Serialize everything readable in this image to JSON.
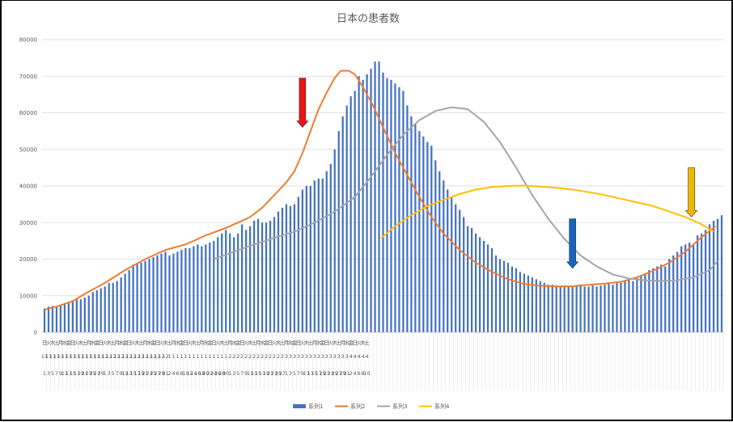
{
  "chart_data": {
    "type": "line",
    "title": "日本の患者数",
    "xlabel": "",
    "ylabel": "",
    "ylim": [
      0,
      80000
    ],
    "yticks": [
      "0",
      "10000",
      "20000",
      "30000",
      "40000",
      "50000",
      "60000",
      "70000",
      "80000"
    ],
    "grid": true,
    "legend_position": "bottom",
    "weekdays": [
      "日",
      "月",
      "火",
      "水",
      "木",
      "金",
      "土"
    ],
    "first_weekday_index": 0,
    "date_labels": [
      "11/1",
      "11/3",
      "11/5",
      "11/7",
      "11/9",
      "11/11",
      "11/13",
      "11/15",
      "11/17",
      "11/19",
      "11/21",
      "11/23",
      "11/25",
      "11/27",
      "11/29",
      "12/1",
      "12/3",
      "12/5",
      "12/7",
      "12/9",
      "12/11",
      "12/13",
      "12/15",
      "12/17",
      "12/19",
      "12/21",
      "12/23",
      "12/25",
      "12/27",
      "12/29",
      "12/31",
      "1/2",
      "1/4",
      "1/6",
      "1/8",
      "1/10",
      "1/12",
      "1/14",
      "1/16",
      "1/18",
      "1/20",
      "1/22",
      "1/24",
      "1/26",
      "1/28",
      "1/30",
      "2/1",
      "2/3",
      "2/5",
      "2/7",
      "2/9",
      "2/11",
      "2/13",
      "2/15",
      "2/17",
      "2/19",
      "2/21",
      "2/23",
      "2/25",
      "2/27",
      "3/1",
      "3/3",
      "3/5",
      "3/7",
      "3/9",
      "3/11",
      "3/13",
      "3/15",
      "3/17",
      "3/19",
      "3/21",
      "3/23",
      "3/25",
      "3/27",
      "3/29",
      "3/31",
      "4/2",
      "4/4",
      "4/6",
      "4/8",
      "4/10"
    ],
    "series": [
      {
        "name": "系列1",
        "kind": "bar",
        "color": "#4472C4",
        "values": [
          6500,
          7000,
          7200,
          7000,
          7500,
          7800,
          8000,
          8500,
          9000,
          9000,
          9500,
          10000,
          11000,
          11500,
          12000,
          12500,
          13500,
          13500,
          14000,
          15000,
          16000,
          17000,
          18500,
          19000,
          19000,
          19500,
          20000,
          20500,
          21000,
          21500,
          22000,
          21000,
          21500,
          22000,
          22500,
          23000,
          23000,
          23500,
          24000,
          23500,
          24000,
          24500,
          25000,
          26000,
          27000,
          28000,
          27000,
          26000,
          27000,
          29500,
          28000,
          29000,
          30500,
          31000,
          30000,
          30000,
          30500,
          31500,
          33000,
          34000,
          35000,
          34500,
          35000,
          37000,
          39000,
          40000,
          40000,
          41500,
          42000,
          42000,
          44000,
          46000,
          50000,
          55000,
          59000,
          62000,
          64500,
          66000,
          70000,
          69000,
          70500,
          72000,
          74000,
          74000,
          71000,
          69500,
          69000,
          68000,
          67000,
          66000,
          62000,
          59000,
          57000,
          55000,
          53500,
          52000,
          51000,
          47000,
          44000,
          41500,
          39000,
          37000,
          35000,
          33500,
          31500,
          29000,
          28500,
          27000,
          26000,
          25000,
          24000,
          23000,
          21000,
          20000,
          19500,
          19000,
          18000,
          17500,
          16500,
          16000,
          15500,
          15000,
          14500,
          14000,
          13500,
          13000,
          13000,
          12800,
          12500,
          12500,
          12500,
          12500,
          12800,
          13000,
          12500,
          12500,
          12800,
          12500,
          12800,
          13000,
          13500,
          13000,
          13500,
          13500,
          14000,
          14500,
          14000,
          15000,
          15500,
          16000,
          17000,
          17500,
          18000,
          18500,
          18000,
          20000,
          21000,
          22000,
          23500,
          24000,
          24500,
          24000,
          26500,
          27000,
          28000,
          29500,
          30500,
          31000,
          32000
        ]
      },
      {
        "name": "系列2",
        "kind": "line",
        "color": "#ED7D31",
        "points": [
          [
            0,
            6200
          ],
          [
            6,
            7000
          ],
          [
            14,
            8500
          ],
          [
            20,
            10500
          ],
          [
            30,
            13500
          ],
          [
            40,
            17000
          ],
          [
            50,
            20000
          ],
          [
            60,
            22500
          ],
          [
            70,
            24000
          ],
          [
            80,
            26500
          ],
          [
            90,
            28500
          ],
          [
            96,
            30000
          ],
          [
            102,
            31500
          ],
          [
            108,
            34000
          ],
          [
            114,
            37500
          ],
          [
            120,
            41000
          ],
          [
            124,
            44000
          ],
          [
            128,
            49000
          ],
          [
            132,
            55000
          ],
          [
            136,
            61000
          ],
          [
            140,
            65500
          ],
          [
            144,
            69500
          ],
          [
            147,
            71500
          ],
          [
            151,
            71500
          ],
          [
            154,
            70500
          ],
          [
            158,
            67000
          ],
          [
            163,
            62000
          ],
          [
            168,
            56000
          ],
          [
            174,
            49000
          ],
          [
            180,
            43000
          ],
          [
            186,
            37000
          ],
          [
            192,
            31500
          ],
          [
            198,
            27000
          ],
          [
            206,
            22500
          ],
          [
            214,
            19000
          ],
          [
            222,
            16500
          ],
          [
            230,
            14500
          ],
          [
            238,
            13200
          ],
          [
            246,
            12700
          ],
          [
            254,
            12500
          ],
          [
            262,
            12600
          ],
          [
            270,
            13000
          ],
          [
            278,
            13300
          ],
          [
            286,
            13800
          ],
          [
            294,
            15000
          ],
          [
            302,
            16800
          ],
          [
            310,
            19000
          ],
          [
            318,
            22000
          ],
          [
            326,
            26000
          ],
          [
            333,
            29000
          ]
        ]
      },
      {
        "name": "系列3",
        "kind": "line",
        "color": "#A5A5A5",
        "points": [
          [
            84,
            20000
          ],
          [
            94,
            22000
          ],
          [
            104,
            24000
          ],
          [
            114,
            25800
          ],
          [
            124,
            27500
          ],
          [
            134,
            30000
          ],
          [
            144,
            33000
          ],
          [
            154,
            37000
          ],
          [
            162,
            42500
          ],
          [
            170,
            48500
          ],
          [
            178,
            54000
          ],
          [
            186,
            58000
          ],
          [
            194,
            60500
          ],
          [
            202,
            61500
          ],
          [
            210,
            61000
          ],
          [
            218,
            57500
          ],
          [
            226,
            52000
          ],
          [
            234,
            45000
          ],
          [
            242,
            37500
          ],
          [
            250,
            31000
          ],
          [
            258,
            25500
          ],
          [
            266,
            21000
          ],
          [
            274,
            18000
          ],
          [
            282,
            15800
          ],
          [
            290,
            14700
          ],
          [
            298,
            14200
          ],
          [
            306,
            14000
          ],
          [
            314,
            14200
          ],
          [
            322,
            15000
          ],
          [
            330,
            17000
          ],
          [
            334,
            19500
          ]
        ]
      },
      {
        "name": "系列4",
        "kind": "line",
        "color": "#FFC000",
        "points": [
          [
            167,
            25700
          ],
          [
            174,
            29000
          ],
          [
            182,
            32000
          ],
          [
            190,
            34500
          ],
          [
            198,
            36200
          ],
          [
            206,
            37800
          ],
          [
            214,
            39000
          ],
          [
            222,
            39700
          ],
          [
            230,
            40000
          ],
          [
            238,
            40100
          ],
          [
            246,
            39800
          ],
          [
            254,
            39500
          ],
          [
            262,
            39000
          ],
          [
            270,
            38300
          ],
          [
            278,
            37500
          ],
          [
            286,
            36500
          ],
          [
            294,
            35500
          ],
          [
            302,
            34500
          ],
          [
            310,
            33000
          ],
          [
            318,
            31500
          ],
          [
            326,
            29500
          ],
          [
            332,
            27500
          ]
        ]
      }
    ],
    "annotations": [
      {
        "type": "arrow-down",
        "color": "#E81416",
        "day": 128,
        "from": 69500,
        "to": 56000
      },
      {
        "type": "arrow-down",
        "color": "#1565C0",
        "day": 262,
        "from": 31000,
        "to": 17500
      },
      {
        "type": "arrow-down",
        "color": "#F0B800",
        "day": 321,
        "from": 45000,
        "to": 31500
      }
    ]
  }
}
